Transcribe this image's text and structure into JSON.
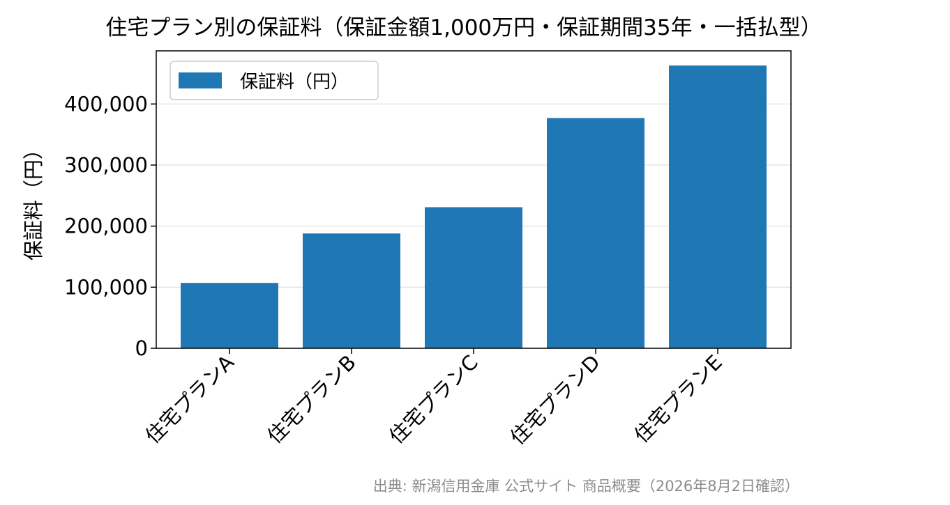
{
  "chart_data": {
    "type": "bar",
    "title": "住宅プラン別の保証料（保証金額1,000万円・保証期間35年・一括払型）",
    "xlabel": "",
    "ylabel": "保証料（円）",
    "categories": [
      "住宅プランA",
      "住宅プランB",
      "住宅プランC",
      "住宅プランD",
      "住宅プランE"
    ],
    "series": [
      {
        "name": "保証料（円）",
        "values": [
          107000,
          188000,
          231000,
          377000,
          463000
        ],
        "color": "#1f77b4"
      }
    ],
    "ylim": [
      0,
      487000
    ],
    "yticks": [
      0,
      100000,
      200000,
      300000,
      400000
    ],
    "ytick_labels": [
      "0",
      "100,000",
      "200,000",
      "300,000",
      "400,000"
    ],
    "grid": "horizontal",
    "legend_position": "top-left",
    "source": "出典: 新潟信用金庫 公式サイト 商品概要（2026年8月2日確認）"
  }
}
